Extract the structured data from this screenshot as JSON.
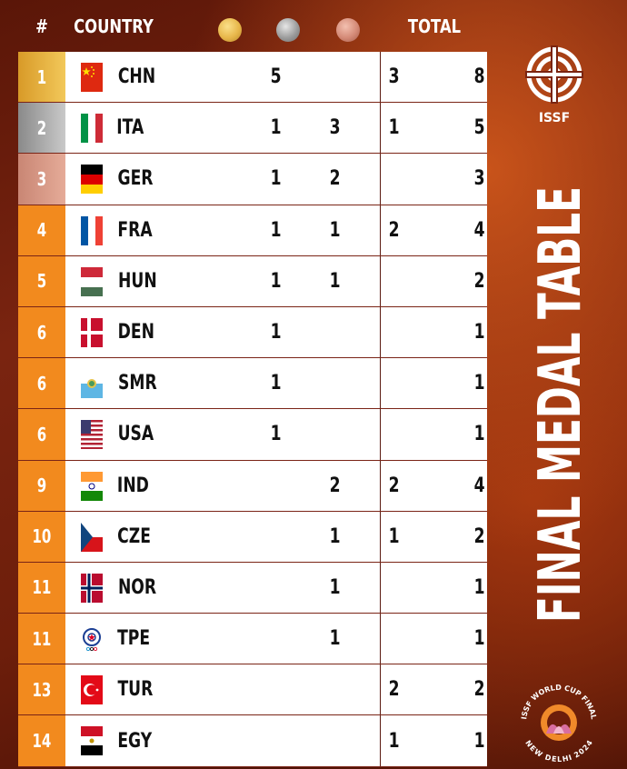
{
  "headers": {
    "rank": "#",
    "country": "COUNTRY",
    "total": "TOTAL"
  },
  "colors": {
    "gold": "#e7b64a",
    "silver": "#9c9c9c",
    "bronze": "#d48a77",
    "orange": "#f28a1e"
  },
  "title": "FINAL MEDAL TABLE",
  "logo_text": "ISSF",
  "event_badge": {
    "top": "ISSF WORLD CUP FINAL",
    "bottom": "NEW DELHI 2024"
  },
  "rows": [
    {
      "rank": "1",
      "code": "CHN",
      "flag": "chn",
      "gold": "5",
      "silver": "",
      "bronze": "3",
      "total": "8"
    },
    {
      "rank": "2",
      "code": "ITA",
      "flag": "ita",
      "gold": "1",
      "silver": "3",
      "bronze": "1",
      "total": "5"
    },
    {
      "rank": "3",
      "code": "GER",
      "flag": "ger",
      "gold": "1",
      "silver": "2",
      "bronze": "",
      "total": "3"
    },
    {
      "rank": "4",
      "code": "FRA",
      "flag": "fra",
      "gold": "1",
      "silver": "1",
      "bronze": "2",
      "total": "4"
    },
    {
      "rank": "5",
      "code": "HUN",
      "flag": "hun",
      "gold": "1",
      "silver": "1",
      "bronze": "",
      "total": "2"
    },
    {
      "rank": "6",
      "code": "DEN",
      "flag": "den",
      "gold": "1",
      "silver": "",
      "bronze": "",
      "total": "1"
    },
    {
      "rank": "6",
      "code": "SMR",
      "flag": "smr",
      "gold": "1",
      "silver": "",
      "bronze": "",
      "total": "1"
    },
    {
      "rank": "6",
      "code": "USA",
      "flag": "usa",
      "gold": "1",
      "silver": "",
      "bronze": "",
      "total": "1"
    },
    {
      "rank": "9",
      "code": "IND",
      "flag": "ind",
      "gold": "",
      "silver": "2",
      "bronze": "2",
      "total": "4"
    },
    {
      "rank": "10",
      "code": "CZE",
      "flag": "cze",
      "gold": "",
      "silver": "1",
      "bronze": "1",
      "total": "2"
    },
    {
      "rank": "11",
      "code": "NOR",
      "flag": "nor",
      "gold": "",
      "silver": "1",
      "bronze": "",
      "total": "1"
    },
    {
      "rank": "11",
      "code": "TPE",
      "flag": "tpe",
      "gold": "",
      "silver": "1",
      "bronze": "",
      "total": "1"
    },
    {
      "rank": "13",
      "code": "TUR",
      "flag": "tur",
      "gold": "",
      "silver": "",
      "bronze": "2",
      "total": "2"
    },
    {
      "rank": "14",
      "code": "EGY",
      "flag": "egy",
      "gold": "",
      "silver": "",
      "bronze": "1",
      "total": "1"
    }
  ]
}
